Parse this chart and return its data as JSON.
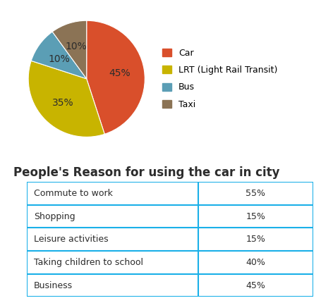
{
  "pie_labels": [
    "Car",
    "LRT (Light Rail Transit)",
    "Bus",
    "Taxi"
  ],
  "pie_values": [
    45,
    35,
    10,
    10
  ],
  "pie_colors": [
    "#d94f2b",
    "#c8b400",
    "#5b9eb5",
    "#8b7355"
  ],
  "pie_text_color": "#2c2c2c",
  "legend_labels": [
    "Car",
    "LRT (Light Rail Transit)",
    "Bus",
    "Taxi"
  ],
  "table_title": "People's Reason for using the car in city",
  "table_rows": [
    [
      "Commute to work",
      "55%"
    ],
    [
      "Shopping",
      "15%"
    ],
    [
      "Leisure activities",
      "15%"
    ],
    [
      "Taking children to school",
      "40%"
    ],
    [
      "Business",
      "45%"
    ]
  ],
  "table_border_color": "#1ab0e8",
  "background_color": "#ffffff",
  "pie_label_fontsize": 10,
  "legend_fontsize": 9,
  "table_title_fontsize": 12,
  "table_fontsize": 9
}
